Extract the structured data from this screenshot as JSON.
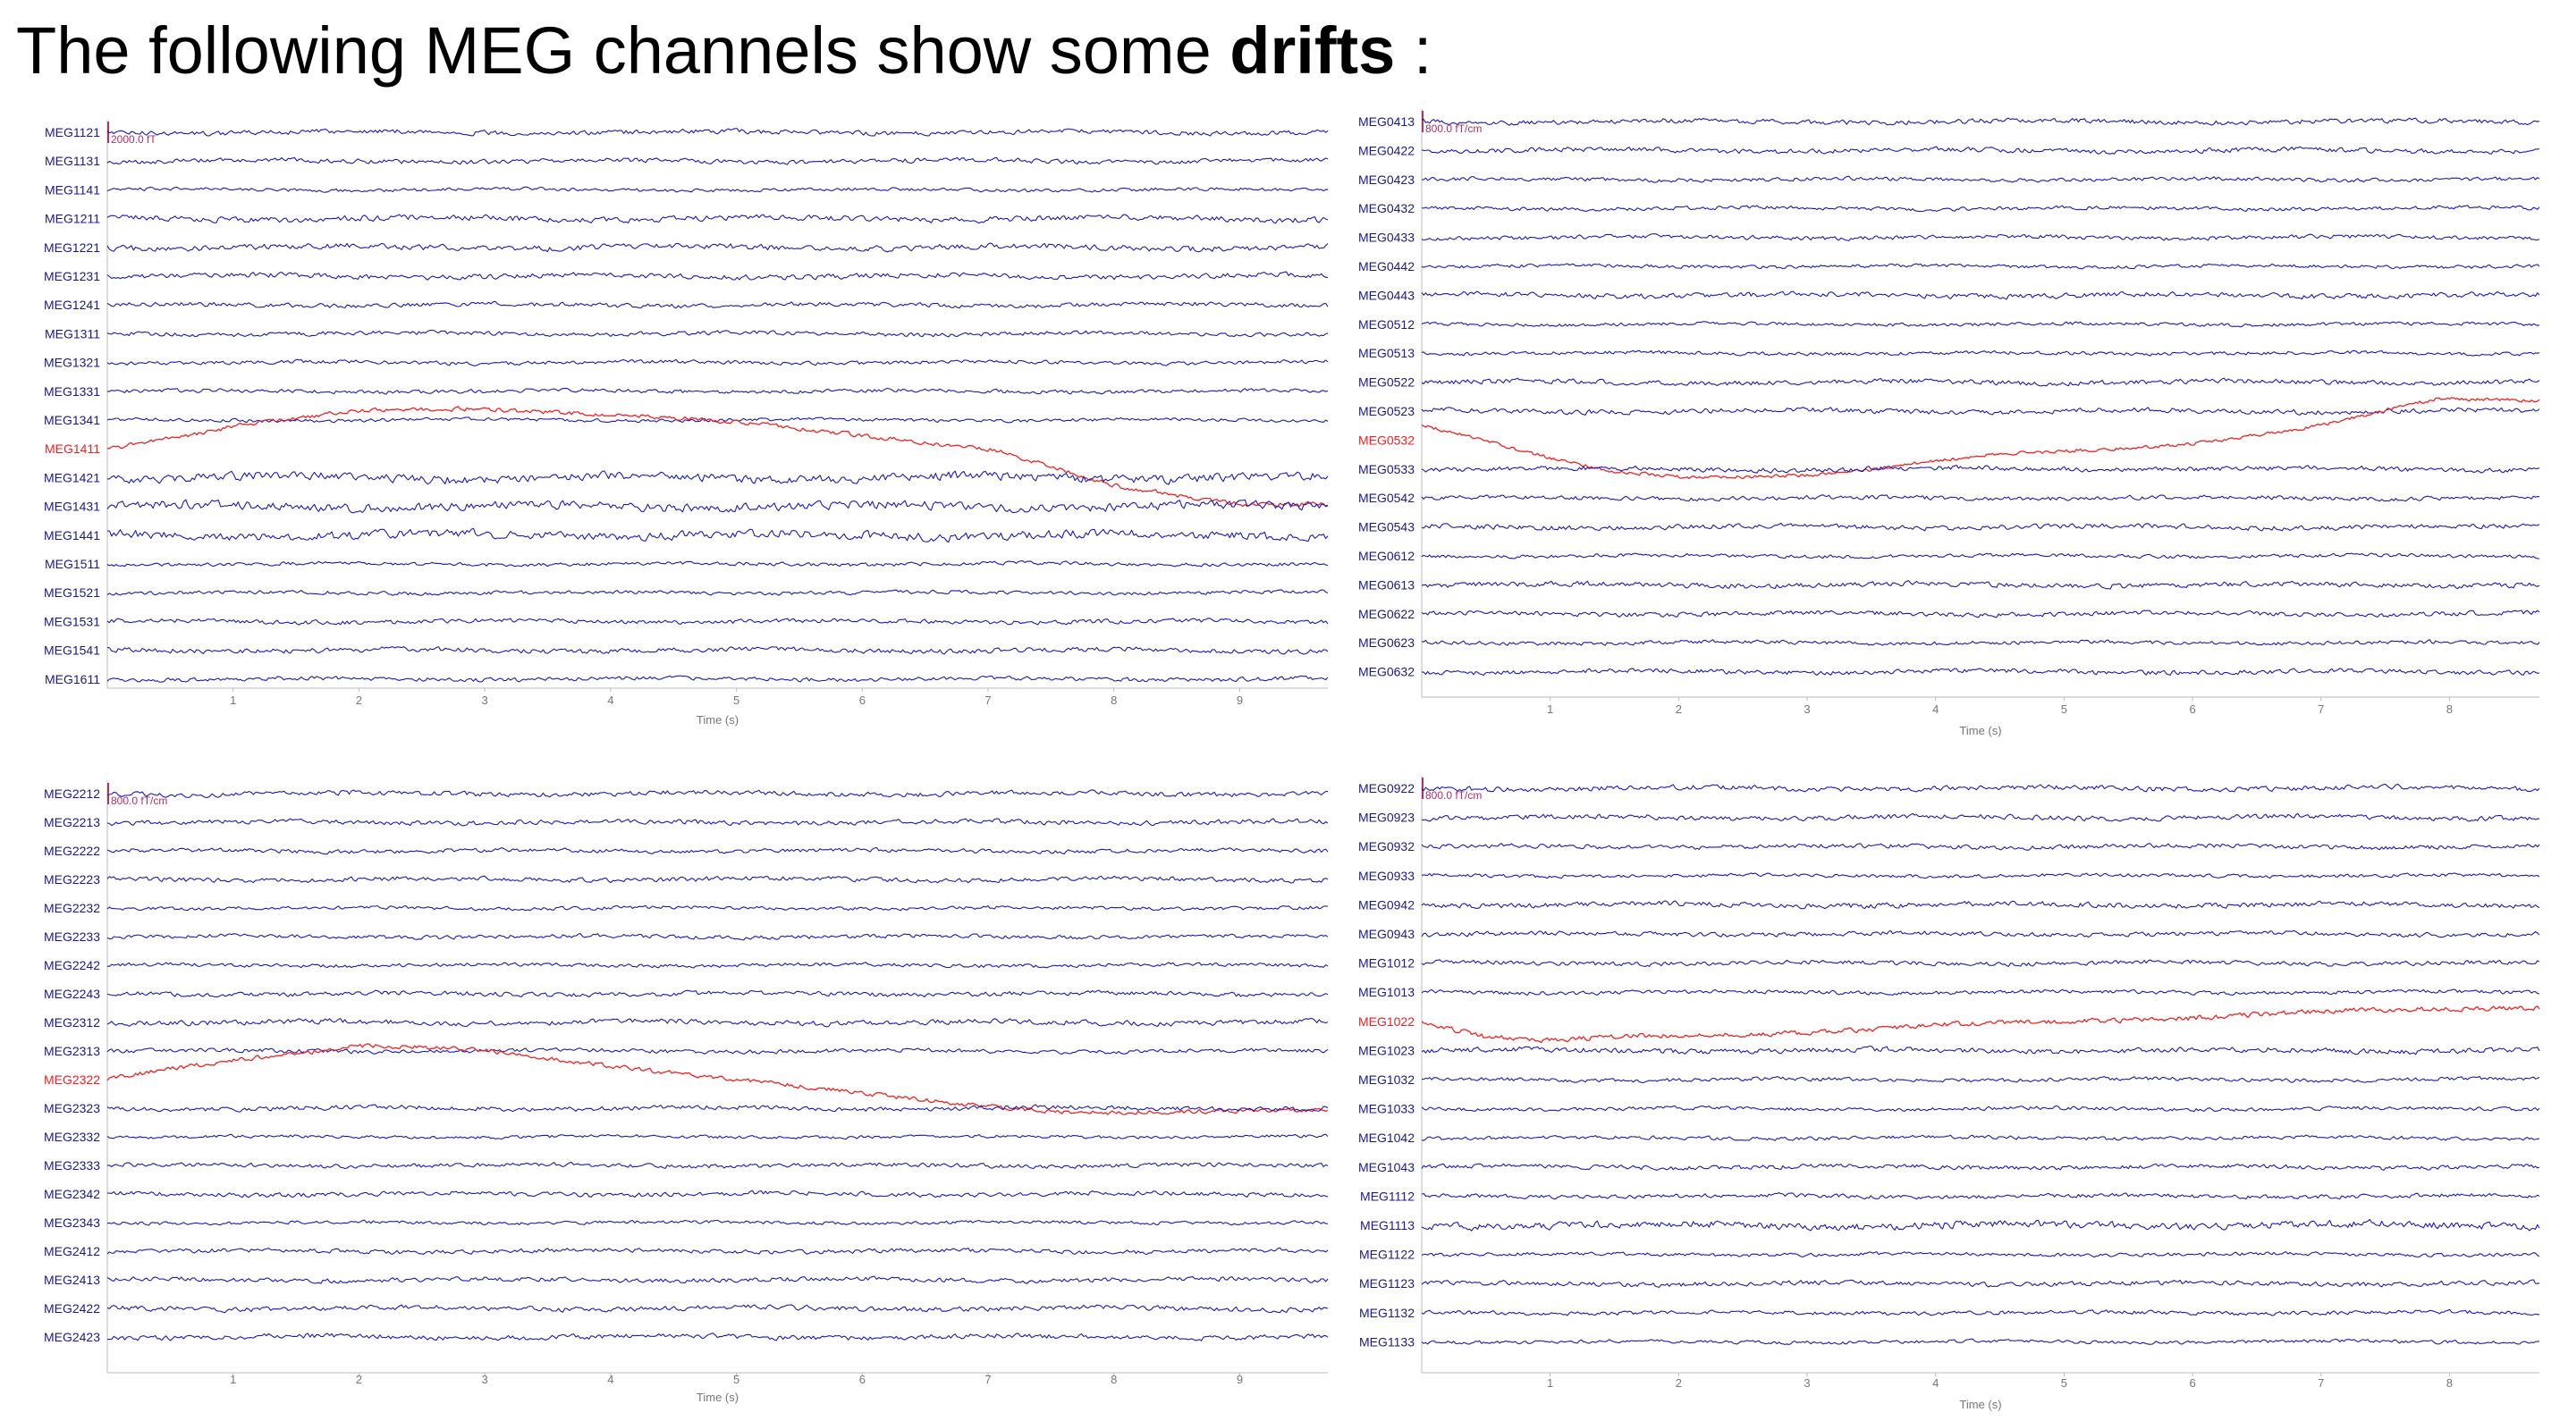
{
  "title": {
    "prefix": "The following MEG channels show some ",
    "bold": "drifts",
    "suffix": " :"
  },
  "colors": {
    "normal": "#1a1ab8",
    "bad": "#ee2222",
    "bad_label": "#ee2222",
    "normal_label": "#1a1a8a",
    "axis": "#bbbbbb",
    "scale": "#b0306a"
  },
  "chart_data": [
    {
      "type": "line",
      "panel": "top-left",
      "xlabel": "Time (s)",
      "xlim": [
        0,
        9.7
      ],
      "x_ticks": [
        1,
        2,
        3,
        4,
        5,
        6,
        7,
        8,
        9
      ],
      "scale_label": "2000.0 fT",
      "bad_channels": [
        "MEG1411"
      ],
      "channels": [
        "MEG1121",
        "MEG1131",
        "MEG1141",
        "MEG1211",
        "MEG1221",
        "MEG1231",
        "MEG1241",
        "MEG1311",
        "MEG1321",
        "MEG1331",
        "MEG1341",
        "MEG1411",
        "MEG1421",
        "MEG1431",
        "MEG1441",
        "MEG1511",
        "MEG1521",
        "MEG1531",
        "MEG1541",
        "MEG1611"
      ],
      "drift": {
        "channel": "MEG1411",
        "x": [
          0,
          1,
          2,
          3,
          4,
          5,
          6,
          7,
          8,
          9,
          9.7
        ],
        "offset_channels": [
          0,
          -0.8,
          -1.3,
          -1.4,
          -1.2,
          -0.9,
          -0.5,
          0,
          1.3,
          1.9,
          1.9
        ]
      }
    },
    {
      "type": "line",
      "panel": "top-right",
      "xlabel": "Time (s)",
      "xlim": [
        0,
        8.7
      ],
      "x_ticks": [
        1,
        2,
        3,
        4,
        5,
        6,
        7,
        8
      ],
      "scale_label": "800.0 fT/cm",
      "bad_channels": [
        "MEG0532"
      ],
      "channels": [
        "MEG0413",
        "MEG0422",
        "MEG0423",
        "MEG0432",
        "MEG0433",
        "MEG0442",
        "MEG0443",
        "MEG0512",
        "MEG0513",
        "MEG0522",
        "MEG0523",
        "MEG0532",
        "MEG0533",
        "MEG0542",
        "MEG0543",
        "MEG0612",
        "MEG0613",
        "MEG0622",
        "MEG0623",
        "MEG0632"
      ],
      "drift": {
        "channel": "MEG0532",
        "x": [
          0,
          0.5,
          1,
          1.5,
          2,
          2.5,
          3,
          3.5,
          4,
          4.5,
          5,
          5.5,
          6,
          6.5,
          7,
          7.5,
          7.9
        ],
        "offset_channels": [
          -0.5,
          0,
          0.6,
          1.1,
          1.3,
          1.3,
          1.2,
          1.0,
          0.7,
          0.5,
          0.4,
          0.3,
          0.1,
          -0.2,
          -0.5,
          -1.0,
          -1.4
        ]
      }
    },
    {
      "type": "line",
      "panel": "bottom-left",
      "xlabel": "Time (s)",
      "xlim": [
        0,
        9.7
      ],
      "x_ticks": [
        1,
        2,
        3,
        4,
        5,
        6,
        7,
        8,
        9
      ],
      "scale_label": "800.0 fT/cm",
      "bad_channels": [
        "MEG2322"
      ],
      "channels": [
        "MEG2212",
        "MEG2213",
        "MEG2222",
        "MEG2223",
        "MEG2232",
        "MEG2233",
        "MEG2242",
        "MEG2243",
        "MEG2312",
        "MEG2313",
        "MEG2322",
        "MEG2323",
        "MEG2332",
        "MEG2333",
        "MEG2342",
        "MEG2343",
        "MEG2412",
        "MEG2413",
        "MEG2422",
        "MEG2423"
      ],
      "drift": {
        "channel": "MEG2322",
        "x": [
          0,
          1,
          2,
          3,
          4,
          5,
          6,
          7,
          7.5,
          8,
          9,
          9.7
        ],
        "offset_channels": [
          0,
          -0.7,
          -1.2,
          -1.0,
          -0.5,
          0,
          0.5,
          0.9,
          1.1,
          1.2,
          1.1,
          1.0
        ]
      }
    },
    {
      "type": "line",
      "panel": "bottom-right",
      "xlabel": "Time (s)",
      "xlim": [
        0,
        8.7
      ],
      "x_ticks": [
        1,
        2,
        3,
        4,
        5,
        6,
        7,
        8
      ],
      "scale_label": "800.0 fT/cm",
      "bad_channels": [
        "MEG1022"
      ],
      "channels": [
        "MEG0922",
        "MEG0923",
        "MEG0932",
        "MEG0933",
        "MEG0942",
        "MEG0943",
        "MEG1012",
        "MEG1013",
        "MEG1022",
        "MEG1023",
        "MEG1032",
        "MEG1033",
        "MEG1042",
        "MEG1043",
        "MEG1112",
        "MEG1113",
        "MEG1122",
        "MEG1123",
        "MEG1132",
        "MEG1133"
      ],
      "drift": {
        "channel": "MEG1022",
        "x": [
          0,
          0.5,
          1,
          2,
          3,
          4,
          5,
          6,
          7,
          8,
          8.7
        ],
        "offset_channels": [
          0,
          0.5,
          0.65,
          0.5,
          0.35,
          0.15,
          0,
          -0.15,
          -0.3,
          -0.45,
          -0.5
        ]
      }
    }
  ]
}
